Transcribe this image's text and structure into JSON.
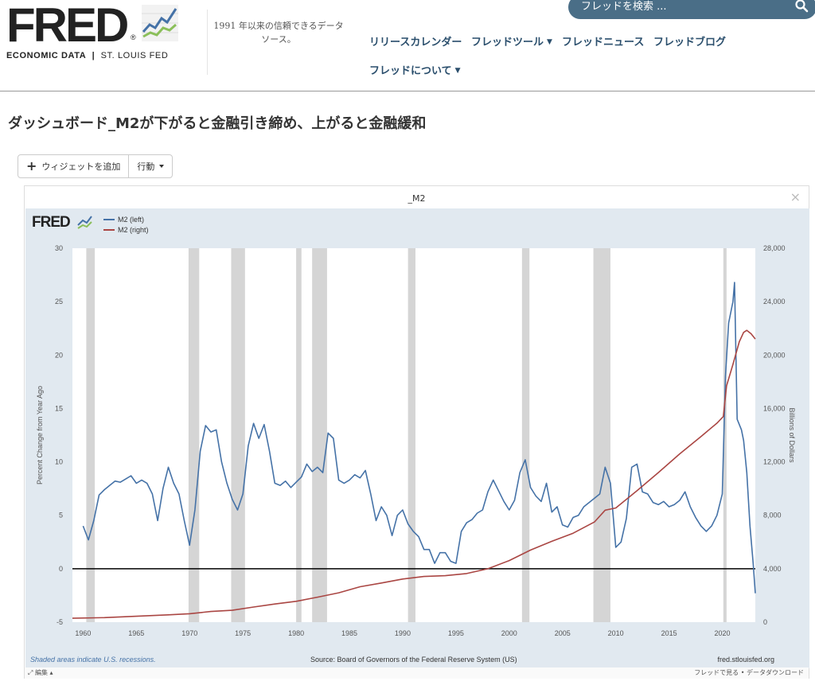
{
  "header": {
    "logo_text": "FRED",
    "logo_reg": "®",
    "logo_sub_left": "ECONOMIC DATA",
    "logo_sub_sep": "|",
    "logo_sub_right": "ST. LOUIS FED",
    "tagline": "1991 年以来の信頼できるデータ ソース。",
    "search_placeholder": "フレッドを検索 ...",
    "nav": [
      {
        "label": "リリースカレンダー",
        "dropdown": false
      },
      {
        "label": "フレッドツール",
        "dropdown": true
      },
      {
        "label": "フレッドニュース",
        "dropdown": false
      },
      {
        "label": "フレッドブログ",
        "dropdown": false
      },
      {
        "label": "フレッドについて",
        "dropdown": true
      }
    ]
  },
  "page": {
    "title": "ダッシュボード_M2が下がると金融引き締め、上がると金融緩和"
  },
  "toolbar": {
    "add_widget_label": "ウィジェットを追加",
    "action_label": "行動"
  },
  "widget": {
    "title": "_M2",
    "close_glyph": "×",
    "edit_label": "編集",
    "footer_links": "フレッドで見る • データダウンロード"
  },
  "colors": {
    "series_left": "#4572a7",
    "series_right": "#aa4643",
    "recession": "#d5d5d5",
    "plot_bg": "#ffffff",
    "chart_bg": "#e1e9f0",
    "search_bg": "#4a6e87",
    "nav_text": "#2a4e6c"
  },
  "chart_data": {
    "type": "line",
    "logo_text": "FRED",
    "left_ylabel": "Percent Change from Year Ago",
    "right_ylabel": "Billions of Dollars",
    "left_ylim": [
      -5,
      30
    ],
    "right_ylim": [
      0,
      28000
    ],
    "left_ticks": [
      "-5",
      "0",
      "5",
      "10",
      "15",
      "20",
      "25",
      "30"
    ],
    "right_ticks": [
      "0",
      "4,000",
      "8,000",
      "12,000",
      "16,000",
      "20,000",
      "24,000",
      "28,000"
    ],
    "xlim": [
      1959.0,
      2023.1
    ],
    "x_ticks": [
      "1960",
      "1965",
      "1970",
      "1975",
      "1980",
      "1985",
      "1990",
      "1995",
      "2000",
      "2005",
      "2010",
      "2015",
      "2020"
    ],
    "recession_note": "Shaded areas indicate U.S. recessions.",
    "source": "Source: Board of Governors of the Federal Reserve System (US)",
    "site": "fred.stlouisfed.org",
    "recessions": [
      [
        1960.3,
        1961.1
      ],
      [
        1969.9,
        1970.9
      ],
      [
        1973.9,
        1975.2
      ],
      [
        1980.0,
        1980.5
      ],
      [
        1981.5,
        1982.9
      ],
      [
        1990.5,
        1991.2
      ],
      [
        2001.2,
        2001.9
      ],
      [
        2007.9,
        2009.5
      ],
      [
        2020.1,
        2020.4
      ]
    ],
    "series": [
      {
        "name": "M2 (left)",
        "axis": "left",
        "points": [
          [
            1960.0,
            4.0
          ],
          [
            1960.5,
            2.7
          ],
          [
            1961.0,
            4.5
          ],
          [
            1961.5,
            6.9
          ],
          [
            1962.0,
            7.4
          ],
          [
            1962.5,
            7.8
          ],
          [
            1963.0,
            8.2
          ],
          [
            1963.5,
            8.1
          ],
          [
            1964.0,
            8.4
          ],
          [
            1964.5,
            8.7
          ],
          [
            1965.0,
            8.0
          ],
          [
            1965.5,
            8.3
          ],
          [
            1966.0,
            8.0
          ],
          [
            1966.5,
            7.0
          ],
          [
            1967.0,
            4.5
          ],
          [
            1967.5,
            7.5
          ],
          [
            1968.0,
            9.5
          ],
          [
            1968.5,
            8.0
          ],
          [
            1969.0,
            7.0
          ],
          [
            1969.5,
            4.5
          ],
          [
            1970.0,
            2.2
          ],
          [
            1970.5,
            5.5
          ],
          [
            1971.0,
            11.0
          ],
          [
            1971.5,
            13.4
          ],
          [
            1972.0,
            12.8
          ],
          [
            1972.5,
            13.0
          ],
          [
            1973.0,
            10.0
          ],
          [
            1973.5,
            8.0
          ],
          [
            1974.0,
            6.5
          ],
          [
            1974.5,
            5.5
          ],
          [
            1975.0,
            7.0
          ],
          [
            1975.5,
            11.5
          ],
          [
            1976.0,
            13.6
          ],
          [
            1976.5,
            12.2
          ],
          [
            1977.0,
            13.5
          ],
          [
            1977.5,
            11.0
          ],
          [
            1978.0,
            8.0
          ],
          [
            1978.5,
            7.8
          ],
          [
            1979.0,
            8.2
          ],
          [
            1979.5,
            7.6
          ],
          [
            1980.0,
            8.1
          ],
          [
            1980.5,
            8.6
          ],
          [
            1981.0,
            9.8
          ],
          [
            1981.5,
            9.1
          ],
          [
            1982.0,
            9.5
          ],
          [
            1982.5,
            9.0
          ],
          [
            1983.0,
            12.7
          ],
          [
            1983.5,
            12.2
          ],
          [
            1984.0,
            8.3
          ],
          [
            1984.5,
            8.0
          ],
          [
            1985.0,
            8.3
          ],
          [
            1985.5,
            8.8
          ],
          [
            1986.0,
            8.5
          ],
          [
            1986.5,
            9.2
          ],
          [
            1987.0,
            7.0
          ],
          [
            1987.5,
            4.5
          ],
          [
            1988.0,
            5.8
          ],
          [
            1988.5,
            5.0
          ],
          [
            1989.0,
            3.1
          ],
          [
            1989.5,
            5.0
          ],
          [
            1990.0,
            5.5
          ],
          [
            1990.5,
            4.2
          ],
          [
            1991.0,
            3.5
          ],
          [
            1991.5,
            3.0
          ],
          [
            1992.0,
            1.8
          ],
          [
            1992.5,
            1.8
          ],
          [
            1993.0,
            0.5
          ],
          [
            1993.5,
            1.5
          ],
          [
            1994.0,
            1.5
          ],
          [
            1994.5,
            0.7
          ],
          [
            1995.0,
            0.5
          ],
          [
            1995.5,
            3.5
          ],
          [
            1996.0,
            4.3
          ],
          [
            1996.5,
            4.6
          ],
          [
            1997.0,
            5.2
          ],
          [
            1997.5,
            5.5
          ],
          [
            1998.0,
            7.2
          ],
          [
            1998.5,
            8.3
          ],
          [
            1999.0,
            7.3
          ],
          [
            1999.5,
            6.3
          ],
          [
            2000.0,
            5.5
          ],
          [
            2000.5,
            6.4
          ],
          [
            2001.0,
            9.0
          ],
          [
            2001.5,
            10.2
          ],
          [
            2002.0,
            7.6
          ],
          [
            2002.5,
            6.8
          ],
          [
            2003.0,
            6.3
          ],
          [
            2003.5,
            8.0
          ],
          [
            2004.0,
            5.3
          ],
          [
            2004.5,
            5.8
          ],
          [
            2005.0,
            4.1
          ],
          [
            2005.5,
            3.9
          ],
          [
            2006.0,
            4.8
          ],
          [
            2006.5,
            5.0
          ],
          [
            2007.0,
            5.8
          ],
          [
            2007.5,
            6.2
          ],
          [
            2008.0,
            6.6
          ],
          [
            2008.5,
            7.0
          ],
          [
            2009.0,
            9.5
          ],
          [
            2009.5,
            8.0
          ],
          [
            2010.0,
            2.0
          ],
          [
            2010.5,
            2.5
          ],
          [
            2011.0,
            4.7
          ],
          [
            2011.5,
            9.5
          ],
          [
            2012.0,
            9.8
          ],
          [
            2012.5,
            7.2
          ],
          [
            2013.0,
            7.0
          ],
          [
            2013.5,
            6.2
          ],
          [
            2014.0,
            6.0
          ],
          [
            2014.5,
            6.3
          ],
          [
            2015.0,
            5.8
          ],
          [
            2015.5,
            6.0
          ],
          [
            2016.0,
            6.4
          ],
          [
            2016.5,
            7.2
          ],
          [
            2017.0,
            5.8
          ],
          [
            2017.5,
            4.8
          ],
          [
            2018.0,
            4.0
          ],
          [
            2018.5,
            3.5
          ],
          [
            2019.0,
            4.0
          ],
          [
            2019.5,
            5.0
          ],
          [
            2020.0,
            7.0
          ],
          [
            2020.3,
            18.0
          ],
          [
            2020.6,
            23.0
          ],
          [
            2021.0,
            25.0
          ],
          [
            2021.15,
            26.8
          ],
          [
            2021.4,
            14.0
          ],
          [
            2021.8,
            13.0
          ],
          [
            2022.0,
            12.0
          ],
          [
            2022.3,
            9.0
          ],
          [
            2022.6,
            4.0
          ],
          [
            2022.9,
            0.5
          ],
          [
            2023.1,
            -2.3
          ]
        ]
      },
      {
        "name": "M2 (right)",
        "axis": "right",
        "points": [
          [
            1959.0,
            290
          ],
          [
            1962.0,
            340
          ],
          [
            1965.0,
            440
          ],
          [
            1968.0,
            550
          ],
          [
            1970.0,
            630
          ],
          [
            1972.0,
            800
          ],
          [
            1974.0,
            890
          ],
          [
            1976.0,
            1130
          ],
          [
            1978.0,
            1360
          ],
          [
            1980.0,
            1560
          ],
          [
            1982.0,
            1870
          ],
          [
            1984.0,
            2200
          ],
          [
            1986.0,
            2650
          ],
          [
            1988.0,
            2930
          ],
          [
            1990.0,
            3230
          ],
          [
            1992.0,
            3420
          ],
          [
            1994.0,
            3480
          ],
          [
            1996.0,
            3640
          ],
          [
            1998.0,
            4000
          ],
          [
            2000.0,
            4610
          ],
          [
            2002.0,
            5400
          ],
          [
            2004.0,
            6050
          ],
          [
            2006.0,
            6660
          ],
          [
            2008.0,
            7500
          ],
          [
            2009.0,
            8380
          ],
          [
            2010.0,
            8550
          ],
          [
            2012.0,
            9850
          ],
          [
            2014.0,
            11200
          ],
          [
            2016.0,
            12600
          ],
          [
            2018.0,
            13900
          ],
          [
            2019.5,
            14900
          ],
          [
            2020.1,
            15400
          ],
          [
            2020.4,
            17700
          ],
          [
            2021.0,
            19300
          ],
          [
            2021.6,
            21000
          ],
          [
            2022.0,
            21700
          ],
          [
            2022.3,
            21850
          ],
          [
            2022.7,
            21600
          ],
          [
            2023.1,
            21200
          ]
        ]
      }
    ]
  }
}
